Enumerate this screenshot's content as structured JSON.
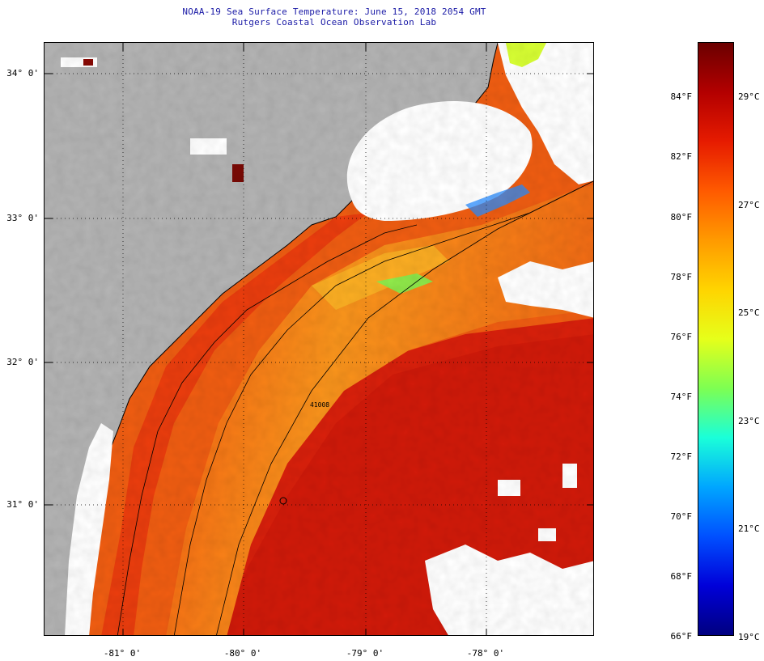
{
  "title": {
    "line1": "NOAA-19 Sea Surface Temperature:  June 15, 2018 2054 GMT",
    "line2": "Rutgers Coastal Ocean Observation Lab"
  },
  "map": {
    "lat_labels": [
      "34° 0'",
      "33° 0'",
      "32° 0'",
      "31° 0'"
    ],
    "lon_labels": [
      "-81° 0'",
      "-80° 0'",
      "-79° 0'",
      "-78° 0'"
    ],
    "buoy_label": "41008",
    "colors": {
      "land": "#b3b3b3",
      "cloud": "#ffffff",
      "warm_core": "#d21a0a",
      "shelf_orange": "#f15a12",
      "nearshore_yellow": "#f8a21c",
      "coast_line": "#000000"
    }
  },
  "colorbar": {
    "fahrenheit_labels": [
      "84°F",
      "82°F",
      "80°F",
      "78°F",
      "76°F",
      "74°F",
      "72°F",
      "70°F",
      "68°F",
      "66°F"
    ],
    "celsius_labels": [
      "29°C",
      "27°C",
      "25°C",
      "23°C",
      "21°C",
      "19°C"
    ],
    "colors": [
      "#6b0000",
      "#b30000",
      "#e61b00",
      "#ff5a00",
      "#ff9a00",
      "#ffd400",
      "#e6ff1a",
      "#7dff52",
      "#1affd9",
      "#00a6ff",
      "#0050ff",
      "#0000d9",
      "#000080"
    ]
  }
}
